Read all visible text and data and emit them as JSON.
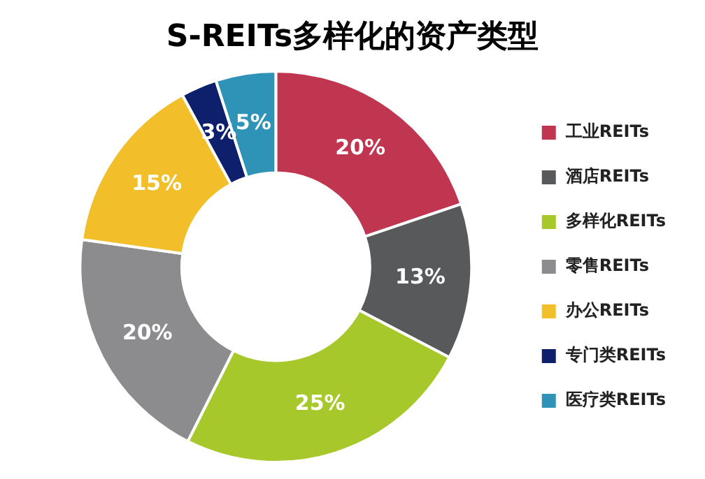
{
  "chart_data": {
    "type": "donut",
    "title": "S-REITs多样化的资产类型",
    "categories": [
      "工业REITs",
      "酒店REITs",
      "多样化REITs",
      "零售REITs",
      "办公REITs",
      "专门类REITs",
      "医疗类REITs"
    ],
    "values": [
      20,
      13,
      25,
      20,
      15,
      3,
      5
    ],
    "value_labels": [
      "20%",
      "13%",
      "25%",
      "20%",
      "15%",
      "3%",
      "5%"
    ],
    "colors": [
      "#c0354f",
      "#58595b",
      "#a6c82a",
      "#8c8c8e",
      "#f2bf2a",
      "#0e1f6b",
      "#2f93b8"
    ],
    "legend": "right"
  }
}
